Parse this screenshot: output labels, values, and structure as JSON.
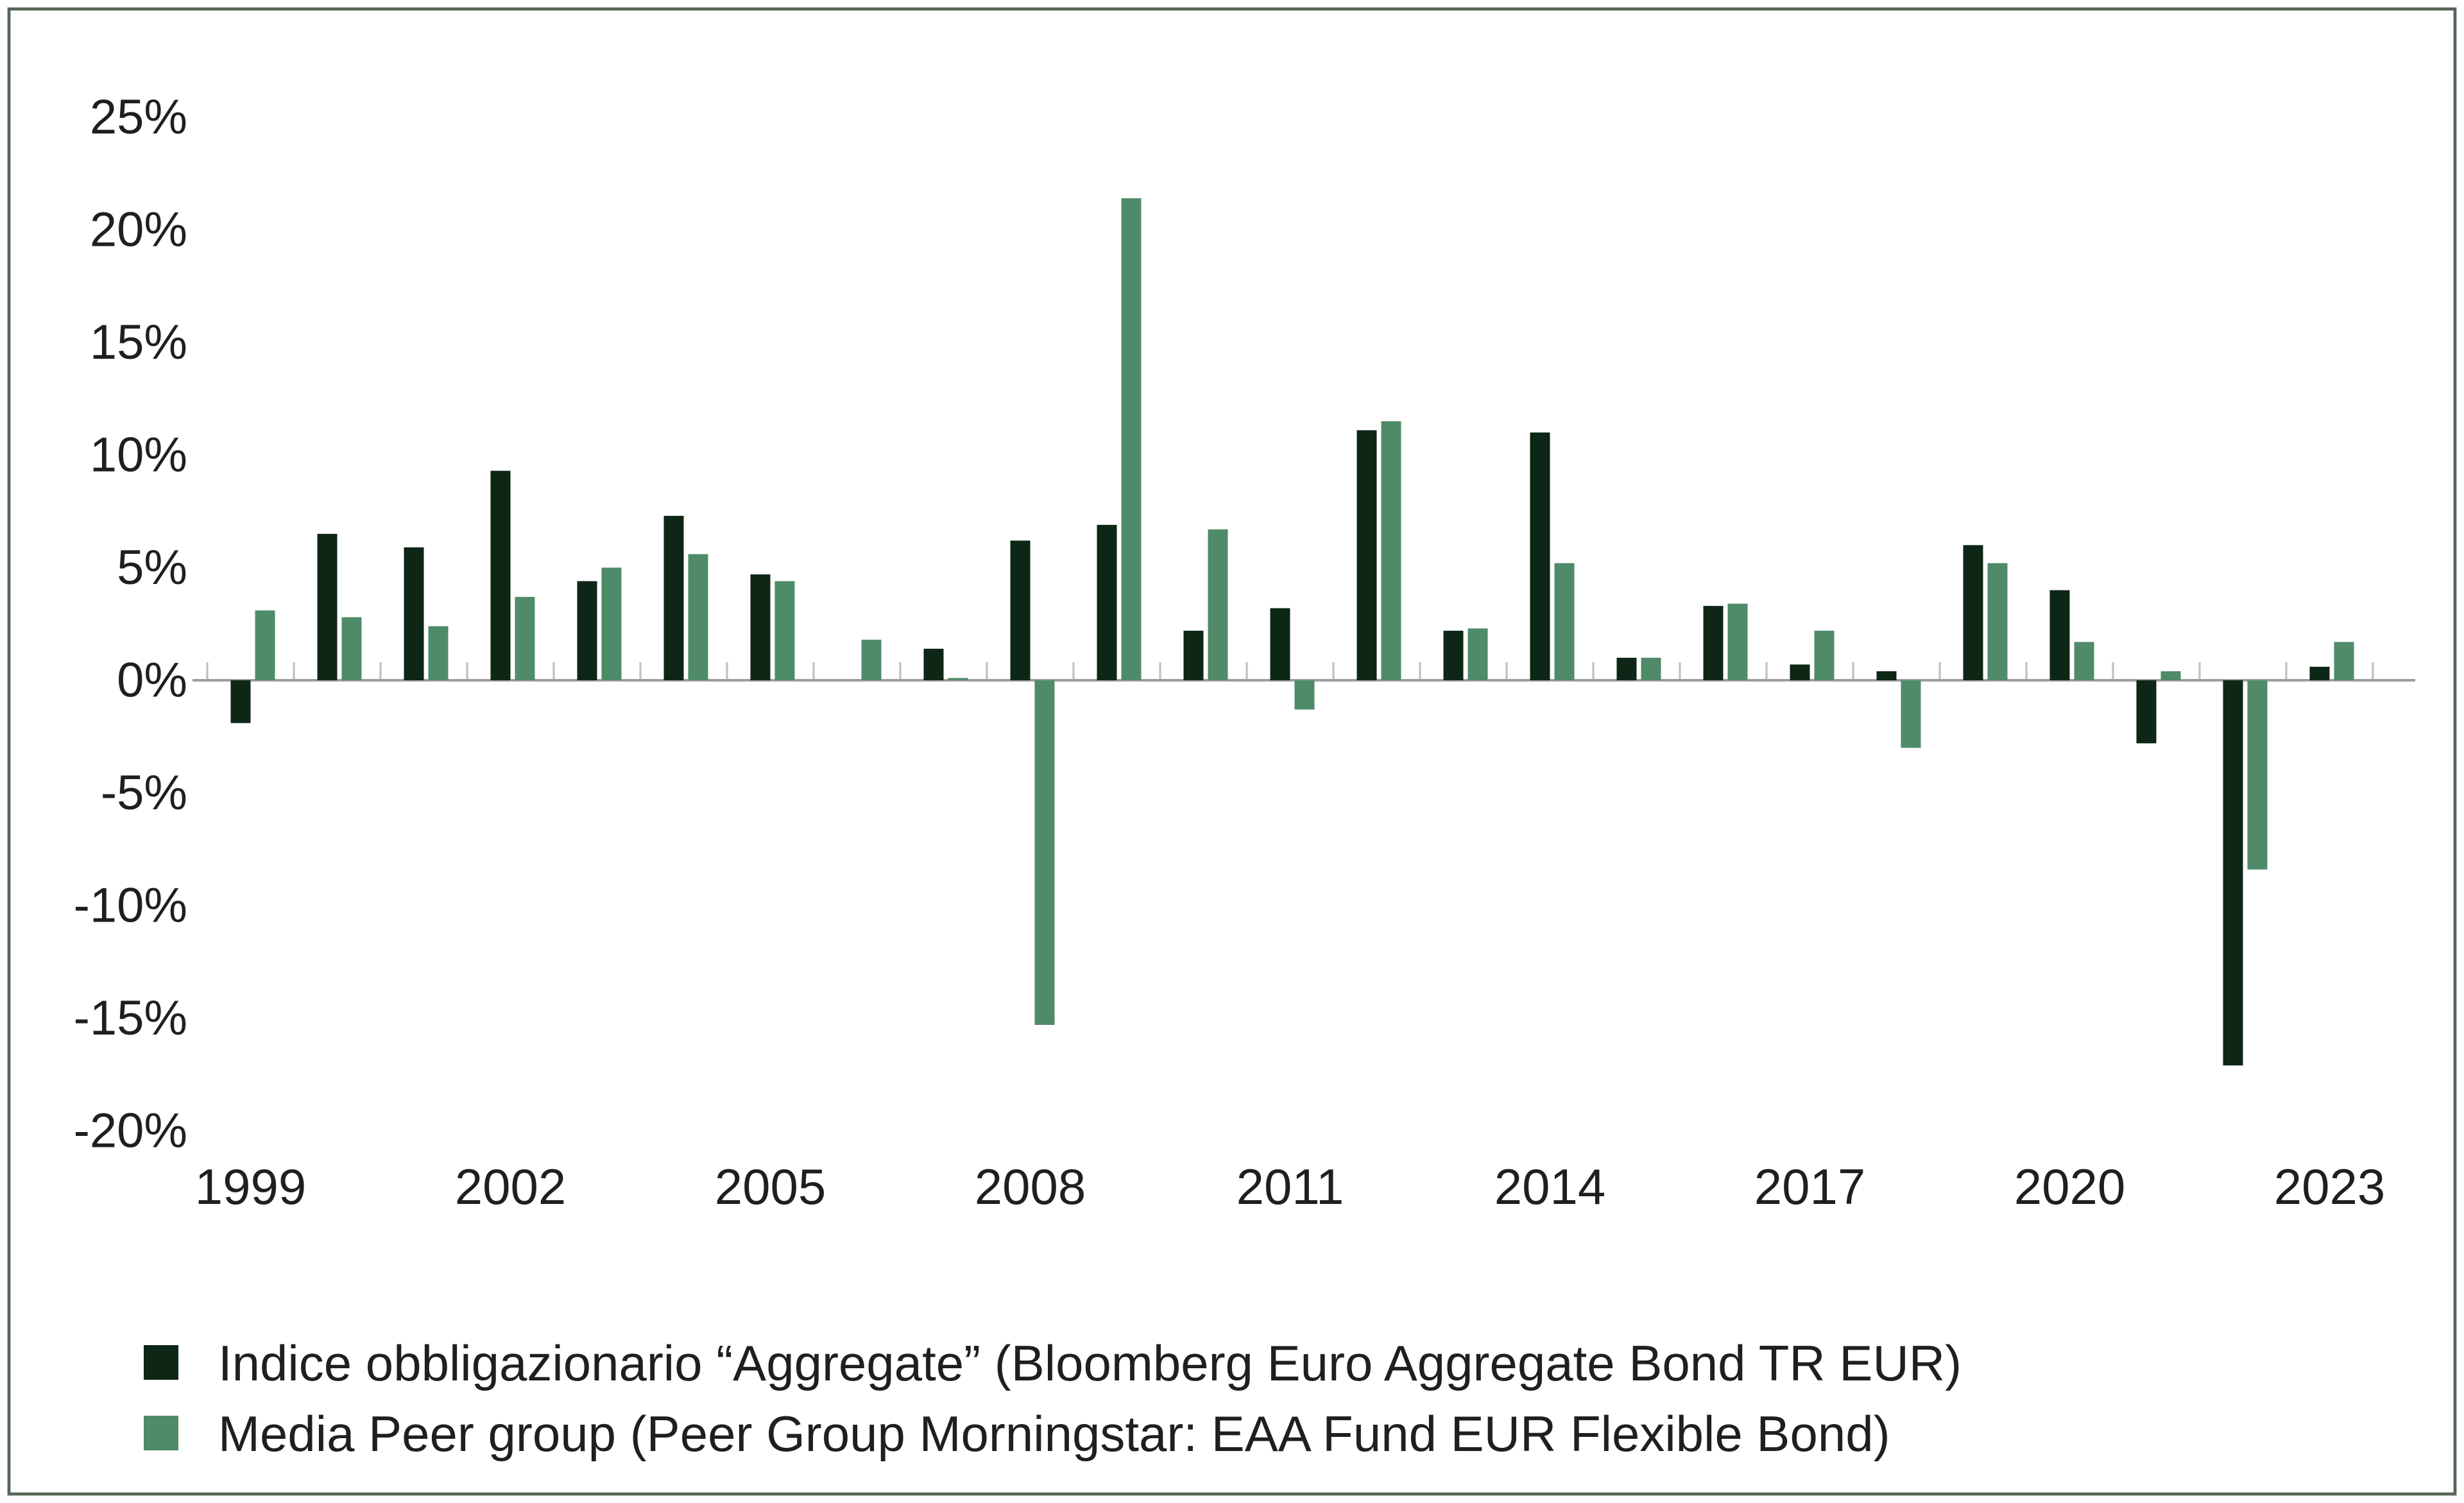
{
  "chart_data": {
    "type": "bar",
    "title": "",
    "categories": [
      "1999",
      "2000",
      "2001",
      "2002",
      "2003",
      "2004",
      "2005",
      "2006",
      "2007",
      "2008",
      "2009",
      "2010",
      "2011",
      "2012",
      "2013",
      "2014",
      "2015",
      "2016",
      "2017",
      "2018",
      "2019",
      "2020",
      "2021",
      "2022",
      "2023"
    ],
    "x_tick_labels_shown": [
      "1999",
      "2002",
      "2005",
      "2008",
      "2011",
      "2014",
      "2017",
      "2020",
      "2023"
    ],
    "y_tick_labels": [
      "25%",
      "20%",
      "15%",
      "10%",
      "5%",
      "0%",
      "-5%",
      "-10%",
      "-15%",
      "-20%"
    ],
    "y_tick_values": [
      25,
      20,
      15,
      10,
      5,
      0,
      -5,
      -10,
      -15,
      -20
    ],
    "ylim": [
      -20,
      25
    ],
    "y_unit": "%",
    "grid": false,
    "legend_position": "bottom-left",
    "series": [
      {
        "name": "Indice obbligazionario “Aggregate” (Bloomberg Euro Aggregate Bond TR EUR)",
        "color": "#0e2616",
        "values": [
          -1.9,
          6.5,
          5.9,
          9.3,
          4.4,
          7.3,
          4.7,
          0.0,
          1.4,
          6.2,
          6.9,
          2.2,
          3.2,
          11.1,
          2.2,
          11.0,
          1.0,
          3.3,
          0.7,
          0.4,
          6.0,
          4.0,
          -2.8,
          -17.1,
          0.6
        ]
      },
      {
        "name": "Media Peer group (Peer Group Morningstar: EAA Fund EUR Flexible Bond)",
        "color": "#4f8b69",
        "values": [
          3.1,
          2.8,
          2.4,
          3.7,
          5.0,
          5.6,
          4.4,
          1.8,
          0.1,
          -15.3,
          21.4,
          6.7,
          -1.3,
          11.5,
          2.3,
          5.2,
          1.0,
          3.4,
          2.2,
          -3.0,
          5.2,
          1.7,
          0.4,
          -8.4,
          1.7
        ]
      }
    ],
    "colors": {
      "background": "#ffffff",
      "frame": "#566759",
      "axis_line": "#9e9e9e",
      "tick": "#c0c0c0",
      "text": "#1f1f1f"
    }
  }
}
